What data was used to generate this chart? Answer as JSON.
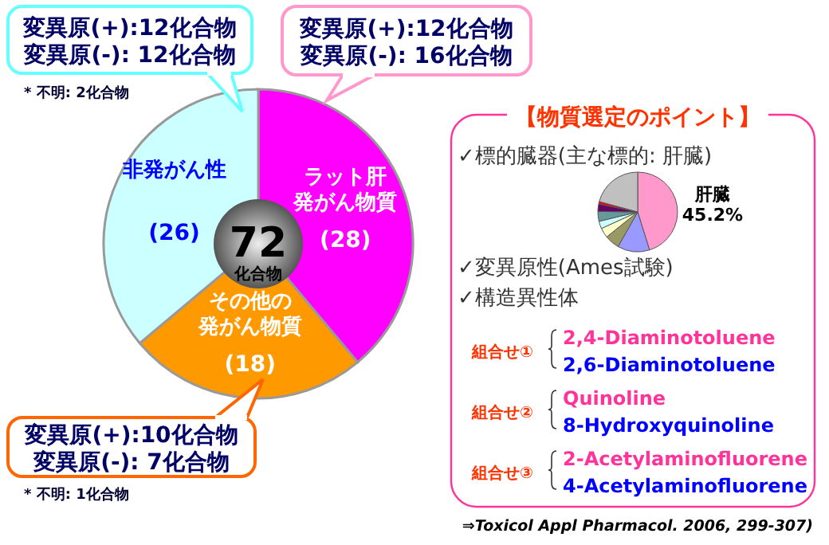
{
  "chart_data": [
    {
      "type": "pie",
      "categories": [
        "ラット肝発がん物質",
        "その他の発がん物質",
        "非発がん性"
      ],
      "values": [
        28,
        18,
        26
      ],
      "colors": [
        "#ff00ff",
        "#ff9900",
        "#ccffff"
      ],
      "value_labels": [
        "(28)",
        "(18)",
        "(26)"
      ],
      "annotations": [
        {
          "text": "72\n化合物"
        },
        {
          "text": "変異原(+):12化合物変異原(-): 16化合物",
          "x": "ラット肝発がん物質"
        },
        {
          "text": "変異原(+):10化合物変異原(-):  7化合物",
          "x": "その他の発がん物質"
        },
        {
          "text": "変異原(+):12化合物変異原(-): 12化合物",
          "x": "非発がん性"
        },
        "* 不明: 1化合物",
        "* 不明: 2化合物"
      ]
    },
    {
      "type": "other",
      "title": "【物質選定のポイント】",
      "annotations": [
        "✓標的臓器(主な標的: 肝臓)",
        "✓変異原性(Ames試験)",
        "✓構造異性体",
        "組合せ①",
        "2,4-Diaminotoluene",
        "2,6-Diaminotoluene",
        "組合せ②",
        "Quinoline",
        "8-Hydroxyquinoline",
        "組合せ③",
        "2-Acetylaminofluorene",
        "4-Acetylaminofluorene",
        "⇒Toxicol Appl Pharmacol. 2006, 299-307)"
      ]
    },
    {
      "type": "pie",
      "categories": [
        "肝臓",
        null,
        null,
        null,
        null,
        null,
        null,
        null,
        null
      ],
      "values": [
        45.2,
        13,
        6,
        4,
        3,
        4,
        3,
        1,
        20.8
      ],
      "colors": [
        "#ff99cc",
        "#9999ff",
        "#999966",
        "#ffffcc",
        "#ccffff",
        "#669999",
        "#660066",
        "#ff0000",
        "#c0c0c0"
      ],
      "value_labels": [
        "45.2%",
        null,
        null,
        null,
        null,
        null,
        null,
        null,
        null
      ]
    }
  ]
}
